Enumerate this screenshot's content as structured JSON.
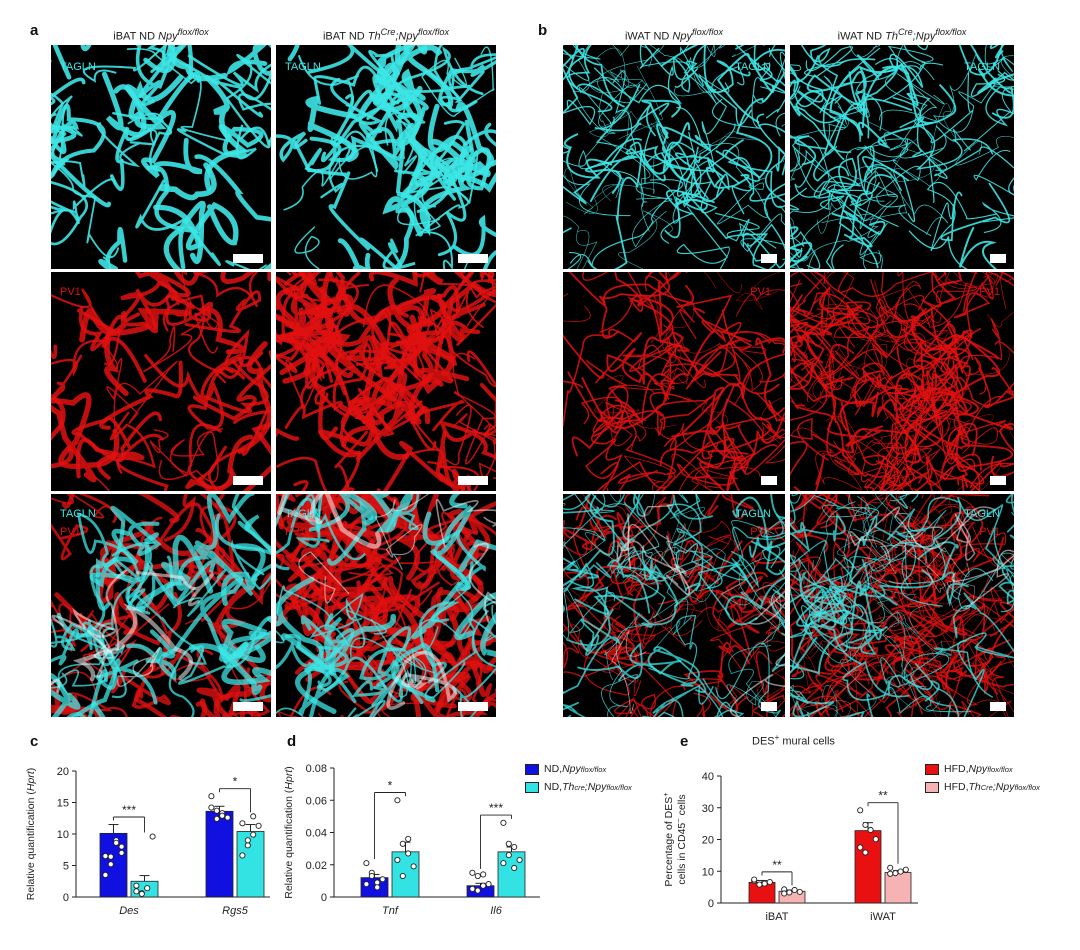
{
  "panels": {
    "a": "a",
    "b": "b",
    "c": "c",
    "d": "d",
    "e": "e"
  },
  "microscopy": {
    "a_col1_prefix": "iBAT ND ",
    "a_col1_gene": "Npy",
    "a_col1_sup": "flox/flox",
    "a_col2_prefix": "iBAT ND ",
    "a_col2_gene": "Th",
    "a_col2_sup1": "Cre",
    "a_col2_mid": ";Npy",
    "a_col2_sup2": "flox/flox",
    "b_col1_prefix": "iWAT ND ",
    "b_col1_gene": "Npy",
    "b_col1_sup": "flox/flox",
    "b_col2_prefix": "iWAT ND ",
    "b_col2_gene": "Th",
    "b_col2_sup1": "Cre",
    "b_col2_mid": ";Npy",
    "b_col2_sup2": "flox/flox",
    "stain_tagln": "TAGLN",
    "stain_pv1": "PV1",
    "colors": {
      "cyan": "#3de6e6",
      "red": "#e01010"
    }
  },
  "chart_data": [
    {
      "id": "c",
      "type": "bar",
      "ylabel_prefix": "Relative quantification (",
      "ylabel_italic": "Hprt",
      "ylabel_suffix": ")",
      "ylim": [
        0,
        20
      ],
      "yticks": [
        "0",
        "5",
        "10",
        "15",
        "20"
      ],
      "categories": [
        "Des",
        "Rgs5"
      ],
      "series": [
        {
          "name": "ND, Npy flox/flox",
          "color": "#1010e0",
          "values": [
            10.1,
            13.6
          ],
          "errors": [
            1.4,
            0.8
          ],
          "points": [
            [
              6.5,
              6.4,
              9.0,
              8.0,
              3.5,
              5.2,
              8.6,
              7.0
            ],
            [
              14.2,
              13.7,
              13.3,
              12.6,
              16.0,
              12.4,
              12.9
            ]
          ]
        },
        {
          "name": "ND, Th cre;Npy flox/flox",
          "color": "#33e3e3",
          "values": [
            2.5,
            10.4
          ],
          "errors": [
            0.9,
            1.1
          ],
          "points": [
            [
              0.9,
              0.6,
              1.4,
              9.6,
              1.8,
              0.5
            ],
            [
              11.7,
              8.2,
              9.9,
              11.3,
              6.6,
              9.0,
              12.8
            ]
          ]
        }
      ],
      "significance": [
        "***",
        "*"
      ]
    },
    {
      "id": "d",
      "type": "bar",
      "ylabel_prefix": "Relative quantification (",
      "ylabel_italic": "Hprt",
      "ylabel_suffix": ")",
      "ylim": [
        0,
        0.08
      ],
      "yticks": [
        "0",
        "0.02",
        "0.04",
        "0.06",
        "0.08"
      ],
      "categories": [
        "Tnf",
        "Il6"
      ],
      "series": [
        {
          "name": "ND, Npy flox/flox",
          "color": "#1010e0",
          "values": [
            0.012,
            0.007
          ],
          "errors": [
            0.002,
            0.0015
          ],
          "points": [
            [
              0.021,
              0.015,
              0.009,
              0.011,
              0.008,
              0.013,
              0.006
            ],
            [
              0.015,
              0.013,
              0.014,
              0.008,
              0.005,
              0.004,
              0.007
            ]
          ]
        },
        {
          "name": "ND, Th cre;Npy flox/flox",
          "color": "#33e3e3",
          "values": [
            0.028,
            0.028
          ],
          "errors": [
            0.006,
            0.003
          ],
          "points": [
            [
              0.06,
              0.033,
              0.027,
              0.019,
              0.023,
              0.013,
              0.036
            ],
            [
              0.046,
              0.033,
              0.031,
              0.023,
              0.021,
              0.026,
              0.018
            ]
          ]
        }
      ],
      "significance": [
        "*",
        "***"
      ],
      "legend": {
        "entry1_prefix": "ND, ",
        "entry1_gene": "Npy",
        "entry1_sup": "flox/flox",
        "entry2_prefix": "ND, ",
        "entry2_gene": "Th",
        "entry2_sup1": "cre",
        "entry2_mid": ";Npy",
        "entry2_sup2": "flox/flox"
      }
    },
    {
      "id": "e",
      "type": "bar",
      "title": "DES",
      "title_sup": "+",
      "title_suffix": " mural cells",
      "ylabel_line1": "Percentage of DES",
      "ylabel_line1_sup": "+",
      "ylabel_line2_prefix": "cells in CD45",
      "ylabel_line2_sup": "−",
      "ylabel_line2_suffix": " cells",
      "ylim": [
        0,
        40
      ],
      "yticks": [
        "0",
        "10",
        "20",
        "30",
        "40"
      ],
      "categories": [
        "iBAT",
        "iWAT"
      ],
      "series": [
        {
          "name": "HFD, Npy flox/flox",
          "color": "#e81010",
          "values": [
            6.5,
            22.8
          ],
          "errors": [
            0.6,
            2.5
          ],
          "points": [
            [
              7.0,
              5.8,
              6.1,
              6.6,
              7.4
            ],
            [
              29.2,
              24.6,
              23.0,
              20.1,
              17.5,
              15.9
            ]
          ]
        },
        {
          "name": "HFD, Th cre;Npy flox/flox",
          "color": "#f7b3b3",
          "values": [
            3.7,
            9.6
          ],
          "errors": [
            0.4,
            0.6
          ],
          "points": [
            [
              4.3,
              3.3,
              4.1,
              3.5,
              3.0
            ],
            [
              11.1,
              9.4,
              9.9,
              10.5,
              9.2
            ]
          ]
        }
      ],
      "significance": [
        "**",
        "**"
      ],
      "legend": {
        "entry1_prefix": "HFD, ",
        "entry1_gene": "Npy",
        "entry1_sup": "flox/flox",
        "entry2_prefix": "HFD, ",
        "entry2_gene": "Th",
        "entry2_sup1": "Cre",
        "entry2_mid": ";Npy",
        "entry2_sup2": "flox/flox"
      }
    }
  ]
}
